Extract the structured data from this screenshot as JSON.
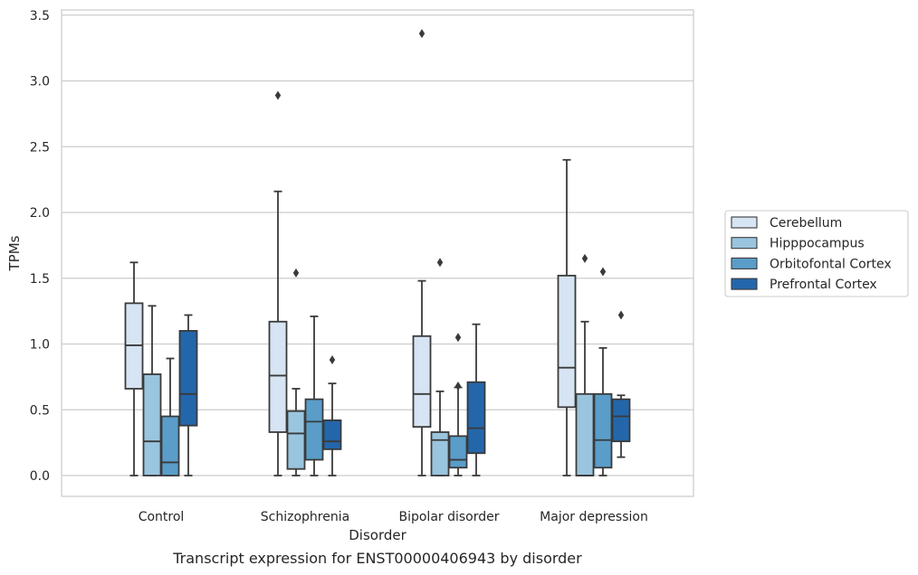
{
  "chart_data": {
    "type": "box",
    "xlabel": "Disorder",
    "ylabel": "TPMs",
    "caption": "Transcript expression for ENST00000406943 by disorder",
    "ylim": [
      -0.16,
      3.55
    ],
    "yticks": [
      "0.0",
      "0.5",
      "1.0",
      "1.5",
      "2.0",
      "2.5",
      "3.0",
      "3.5"
    ],
    "grid": true,
    "legend_position": "right",
    "categories": [
      "Control",
      "Schizophrenia",
      "Bipolar disorder",
      "Major depression"
    ],
    "series": [
      {
        "name": "Cerebellum",
        "color": "#d6e4f3",
        "boxes": [
          {
            "whislo": 0.0,
            "q1": 0.66,
            "med": 0.99,
            "q3": 1.31,
            "whishi": 1.62,
            "fliers": []
          },
          {
            "whislo": 0.0,
            "q1": 0.33,
            "med": 0.76,
            "q3": 1.17,
            "whishi": 2.16,
            "fliers": [
              2.89
            ]
          },
          {
            "whislo": 0.0,
            "q1": 0.37,
            "med": 0.62,
            "q3": 1.06,
            "whishi": 1.48,
            "fliers": [
              3.36
            ]
          },
          {
            "whislo": 0.0,
            "q1": 0.52,
            "med": 0.82,
            "q3": 1.52,
            "whishi": 2.4,
            "fliers": []
          }
        ]
      },
      {
        "name": "Hipppocampus",
        "color": "#9ac5de",
        "boxes": [
          {
            "whislo": 0.0,
            "q1": 0.0,
            "med": 0.26,
            "q3": 0.77,
            "whishi": 1.29,
            "fliers": []
          },
          {
            "whislo": 0.0,
            "q1": 0.05,
            "med": 0.32,
            "q3": 0.49,
            "whishi": 0.66,
            "fliers": [
              1.54
            ]
          },
          {
            "whislo": 0.0,
            "q1": 0.0,
            "med": 0.27,
            "q3": 0.33,
            "whishi": 0.64,
            "fliers": [
              1.62
            ]
          },
          {
            "whislo": 0.0,
            "q1": 0.0,
            "med": 0.0,
            "q3": 0.62,
            "whishi": 1.17,
            "fliers": [
              1.65
            ]
          }
        ]
      },
      {
        "name": "Orbitofontal Cortex",
        "color": "#5a9dc9",
        "boxes": [
          {
            "whislo": 0.0,
            "q1": 0.0,
            "med": 0.1,
            "q3": 0.45,
            "whishi": 0.89,
            "fliers": []
          },
          {
            "whislo": 0.0,
            "q1": 0.12,
            "med": 0.41,
            "q3": 0.58,
            "whishi": 1.21,
            "fliers": []
          },
          {
            "whislo": 0.0,
            "q1": 0.06,
            "med": 0.12,
            "q3": 0.3,
            "whishi": 0.67,
            "fliers": [
              1.05,
              0.68
            ]
          },
          {
            "whislo": 0.0,
            "q1": 0.06,
            "med": 0.27,
            "q3": 0.62,
            "whishi": 0.97,
            "fliers": [
              1.55
            ]
          }
        ]
      },
      {
        "name": "Prefrontal Cortex",
        "color": "#2466aa",
        "boxes": [
          {
            "whislo": 0.0,
            "q1": 0.38,
            "med": 0.62,
            "q3": 1.1,
            "whishi": 1.22,
            "fliers": []
          },
          {
            "whislo": 0.0,
            "q1": 0.2,
            "med": 0.26,
            "q3": 0.42,
            "whishi": 0.7,
            "fliers": [
              0.88
            ]
          },
          {
            "whislo": 0.0,
            "q1": 0.17,
            "med": 0.36,
            "q3": 0.71,
            "whishi": 1.15,
            "fliers": []
          },
          {
            "whislo": 0.14,
            "q1": 0.26,
            "med": 0.45,
            "q3": 0.58,
            "whishi": 0.61,
            "fliers": [
              1.22
            ]
          }
        ]
      }
    ]
  }
}
